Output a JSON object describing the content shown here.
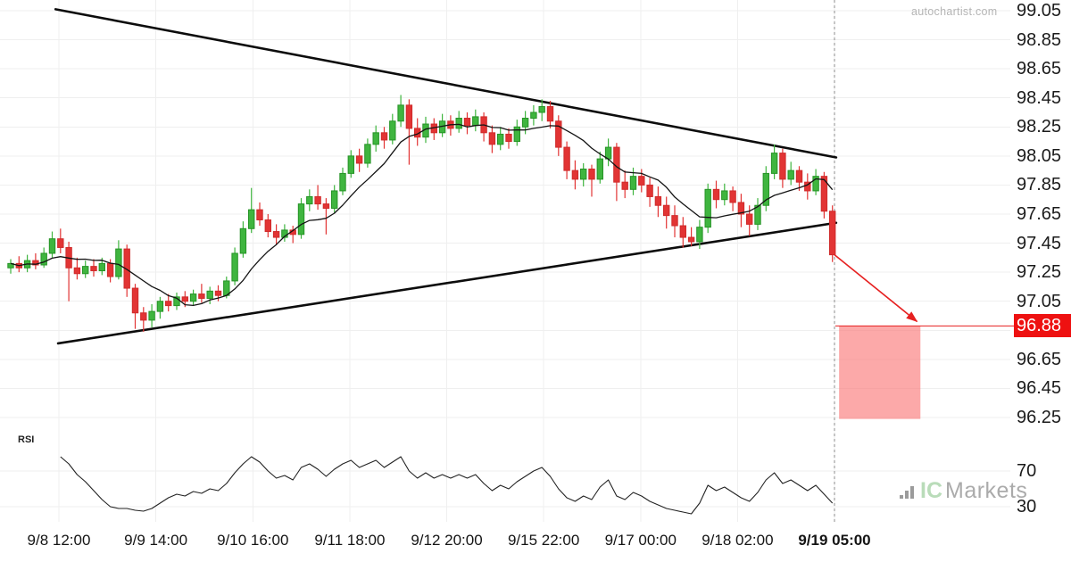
{
  "watermarks": {
    "autochartist": "autochartist.com",
    "broker_name_green": "IC",
    "broker_name_gray": "Markets"
  },
  "chart_data": {
    "type": "candlestick",
    "title": "",
    "legend": [],
    "grid": true,
    "y_ticks": [
      "99.05",
      "98.85",
      "98.65",
      "98.45",
      "98.25",
      "98.05",
      "97.85",
      "97.65",
      "97.45",
      "97.25",
      "97.05",
      "96.85",
      "96.65",
      "96.45",
      "96.25"
    ],
    "y_axis_top_price": 99.05,
    "y_axis_bottom_price": 96.25,
    "x_ticks": [
      "9/8 12:00",
      "9/9 14:00",
      "9/10 16:00",
      "9/11 18:00",
      "9/12 20:00",
      "9/15 22:00",
      "9/17 00:00",
      "9/18 02:00",
      "9/19 05:00"
    ],
    "x_last_tick_bold": true,
    "candles": [
      [
        97.28,
        97.34,
        97.24,
        97.31
      ],
      [
        97.31,
        97.36,
        97.25,
        97.28
      ],
      [
        97.28,
        97.37,
        97.25,
        97.33
      ],
      [
        97.33,
        97.38,
        97.27,
        97.3
      ],
      [
        97.3,
        97.42,
        97.28,
        97.38
      ],
      [
        97.38,
        97.53,
        97.35,
        97.48
      ],
      [
        97.48,
        97.55,
        97.38,
        97.42
      ],
      [
        97.42,
        97.46,
        97.05,
        97.28
      ],
      [
        97.28,
        97.35,
        97.2,
        97.24
      ],
      [
        97.24,
        97.33,
        97.21,
        97.29
      ],
      [
        97.29,
        97.34,
        97.22,
        97.26
      ],
      [
        97.26,
        97.35,
        97.23,
        97.31
      ],
      [
        97.31,
        97.34,
        97.18,
        97.22
      ],
      [
        97.22,
        97.47,
        97.2,
        97.41
      ],
      [
        97.41,
        97.44,
        97.08,
        97.14
      ],
      [
        97.14,
        97.17,
        96.86,
        96.97
      ],
      [
        96.97,
        97.01,
        96.84,
        96.92
      ],
      [
        96.92,
        97.03,
        96.87,
        96.98
      ],
      [
        96.98,
        97.08,
        96.93,
        97.05
      ],
      [
        97.05,
        97.1,
        96.98,
        97.02
      ],
      [
        97.02,
        97.11,
        96.99,
        97.08
      ],
      [
        97.08,
        97.12,
        97.01,
        97.05
      ],
      [
        97.05,
        97.13,
        97.02,
        97.1
      ],
      [
        97.1,
        97.17,
        97.04,
        97.07
      ],
      [
        97.07,
        97.15,
        97.03,
        97.12
      ],
      [
        97.12,
        97.16,
        97.05,
        97.09
      ],
      [
        97.09,
        97.22,
        97.07,
        97.19
      ],
      [
        97.19,
        97.42,
        97.16,
        97.38
      ],
      [
        97.38,
        97.6,
        97.35,
        97.55
      ],
      [
        97.55,
        97.83,
        97.52,
        97.68
      ],
      [
        97.68,
        97.73,
        97.57,
        97.61
      ],
      [
        97.61,
        97.65,
        97.49,
        97.53
      ],
      [
        97.53,
        97.58,
        97.44,
        97.49
      ],
      [
        97.49,
        97.58,
        97.46,
        97.54
      ],
      [
        97.54,
        97.57,
        97.45,
        97.51
      ],
      [
        97.51,
        97.76,
        97.48,
        97.72
      ],
      [
        97.72,
        97.82,
        97.67,
        97.77
      ],
      [
        97.77,
        97.85,
        97.68,
        97.72
      ],
      [
        97.72,
        97.76,
        97.51,
        97.69
      ],
      [
        97.69,
        97.85,
        97.66,
        97.81
      ],
      [
        97.81,
        97.97,
        97.78,
        97.93
      ],
      [
        97.93,
        98.09,
        97.9,
        98.05
      ],
      [
        98.05,
        98.1,
        97.94,
        98.0
      ],
      [
        98.0,
        98.17,
        97.97,
        98.13
      ],
      [
        98.13,
        98.26,
        98.08,
        98.21
      ],
      [
        98.21,
        98.25,
        98.1,
        98.16
      ],
      [
        98.16,
        98.34,
        98.13,
        98.29
      ],
      [
        98.29,
        98.47,
        98.25,
        98.4
      ],
      [
        98.4,
        98.44,
        97.99,
        98.24
      ],
      [
        98.24,
        98.31,
        98.12,
        98.18
      ],
      [
        98.18,
        98.32,
        98.14,
        98.27
      ],
      [
        98.27,
        98.31,
        98.16,
        98.21
      ],
      [
        98.21,
        98.34,
        98.18,
        98.29
      ],
      [
        98.29,
        98.33,
        98.19,
        98.24
      ],
      [
        98.24,
        98.36,
        98.21,
        98.31
      ],
      [
        98.31,
        98.35,
        98.2,
        98.26
      ],
      [
        98.26,
        98.37,
        98.22,
        98.32
      ],
      [
        98.32,
        98.35,
        98.15,
        98.21
      ],
      [
        98.21,
        98.26,
        98.07,
        98.13
      ],
      [
        98.13,
        98.25,
        98.09,
        98.2
      ],
      [
        98.2,
        98.24,
        98.1,
        98.15
      ],
      [
        98.15,
        98.3,
        98.12,
        98.25
      ],
      [
        98.25,
        98.36,
        98.2,
        98.31
      ],
      [
        98.31,
        98.4,
        98.26,
        98.35
      ],
      [
        98.35,
        98.44,
        98.29,
        98.39
      ],
      [
        98.39,
        98.43,
        98.24,
        98.29
      ],
      [
        98.29,
        98.33,
        98.05,
        98.11
      ],
      [
        98.11,
        98.15,
        97.89,
        97.95
      ],
      [
        97.95,
        98.02,
        97.82,
        97.89
      ],
      [
        97.89,
        98.0,
        97.84,
        97.96
      ],
      [
        97.96,
        97.99,
        97.77,
        97.89
      ],
      [
        97.89,
        98.08,
        97.86,
        98.03
      ],
      [
        98.03,
        98.17,
        97.98,
        98.11
      ],
      [
        98.11,
        98.14,
        97.74,
        97.87
      ],
      [
        97.87,
        97.95,
        97.76,
        97.82
      ],
      [
        97.82,
        97.97,
        97.78,
        97.91
      ],
      [
        97.91,
        97.96,
        97.8,
        97.85
      ],
      [
        97.85,
        97.9,
        97.7,
        97.77
      ],
      [
        97.77,
        97.84,
        97.63,
        97.71
      ],
      [
        97.71,
        97.77,
        97.55,
        97.64
      ],
      [
        97.64,
        97.71,
        97.49,
        97.57
      ],
      [
        97.57,
        97.63,
        97.42,
        97.49
      ],
      [
        97.49,
        97.56,
        97.43,
        97.46
      ],
      [
        97.46,
        97.61,
        97.41,
        97.56
      ],
      [
        97.56,
        97.86,
        97.52,
        97.82
      ],
      [
        97.82,
        97.88,
        97.69,
        97.75
      ],
      [
        97.75,
        97.86,
        97.71,
        97.81
      ],
      [
        97.81,
        97.84,
        97.67,
        97.73
      ],
      [
        97.73,
        97.79,
        97.56,
        97.65
      ],
      [
        97.65,
        97.71,
        97.5,
        97.58
      ],
      [
        97.58,
        97.76,
        97.54,
        97.71
      ],
      [
        97.71,
        97.98,
        97.67,
        97.93
      ],
      [
        97.93,
        98.13,
        97.89,
        98.07
      ],
      [
        98.07,
        98.1,
        97.83,
        97.89
      ],
      [
        97.89,
        98.01,
        97.85,
        97.95
      ],
      [
        97.95,
        97.98,
        97.81,
        97.87
      ],
      [
        97.87,
        97.93,
        97.75,
        97.81
      ],
      [
        97.81,
        97.96,
        97.78,
        97.91
      ],
      [
        97.91,
        97.94,
        97.62,
        97.67
      ],
      [
        97.67,
        97.71,
        97.32,
        97.37
      ]
    ],
    "ma_period": 8,
    "rsi": {
      "label": "RSI",
      "ticks": [
        "70",
        "30"
      ],
      "start_index": 6,
      "values": [
        86,
        78,
        66,
        58,
        48,
        38,
        30,
        28,
        28,
        26,
        25,
        28,
        34,
        40,
        44,
        42,
        47,
        45,
        50,
        48,
        56,
        68,
        78,
        86,
        80,
        70,
        62,
        65,
        60,
        74,
        78,
        72,
        64,
        72,
        78,
        82,
        74,
        78,
        82,
        74,
        80,
        86,
        70,
        62,
        68,
        62,
        66,
        62,
        66,
        62,
        66,
        56,
        48,
        54,
        50,
        58,
        64,
        70,
        74,
        64,
        50,
        40,
        36,
        42,
        38,
        52,
        60,
        42,
        38,
        46,
        42,
        36,
        32,
        28,
        26,
        24,
        22,
        34,
        54,
        48,
        52,
        46,
        40,
        36,
        46,
        60,
        68,
        56,
        60,
        54,
        48,
        54,
        44,
        34
      ]
    },
    "pattern_lines": {
      "upper": {
        "from_index": 5.4,
        "from_price": 99.06,
        "to_index": 99.45,
        "to_price": 98.04
      },
      "lower": {
        "from_index": 5.7,
        "from_price": 96.76,
        "to_index": 99.45,
        "to_price": 97.59
      }
    },
    "forecast": {
      "price_label": "96.88",
      "line_price": 96.88,
      "box": {
        "from_index": 99.8,
        "to_index": 109.6,
        "top_price": 96.88,
        "bottom_price": 96.24
      },
      "arrow": {
        "from_index": 99.25,
        "from_price": 97.37,
        "to_index": 109.2,
        "to_price": 96.91
      }
    },
    "colors": {
      "up_fill": "#3fb53f",
      "up_stroke": "#269326",
      "down_fill": "#e23434",
      "down_stroke": "#cf2b2b",
      "ma_line": "#141414",
      "rsi_line": "#222222",
      "trendline": "#0c0c0c",
      "grid": "#efefef",
      "dashed_line": "#8c8c8c",
      "forecast_box": "#fa7070",
      "forecast_box_opacity": 0.6,
      "signal_red": "#e62020",
      "badge_bg": "#ee1111",
      "badge_text": "#ffffff"
    }
  }
}
